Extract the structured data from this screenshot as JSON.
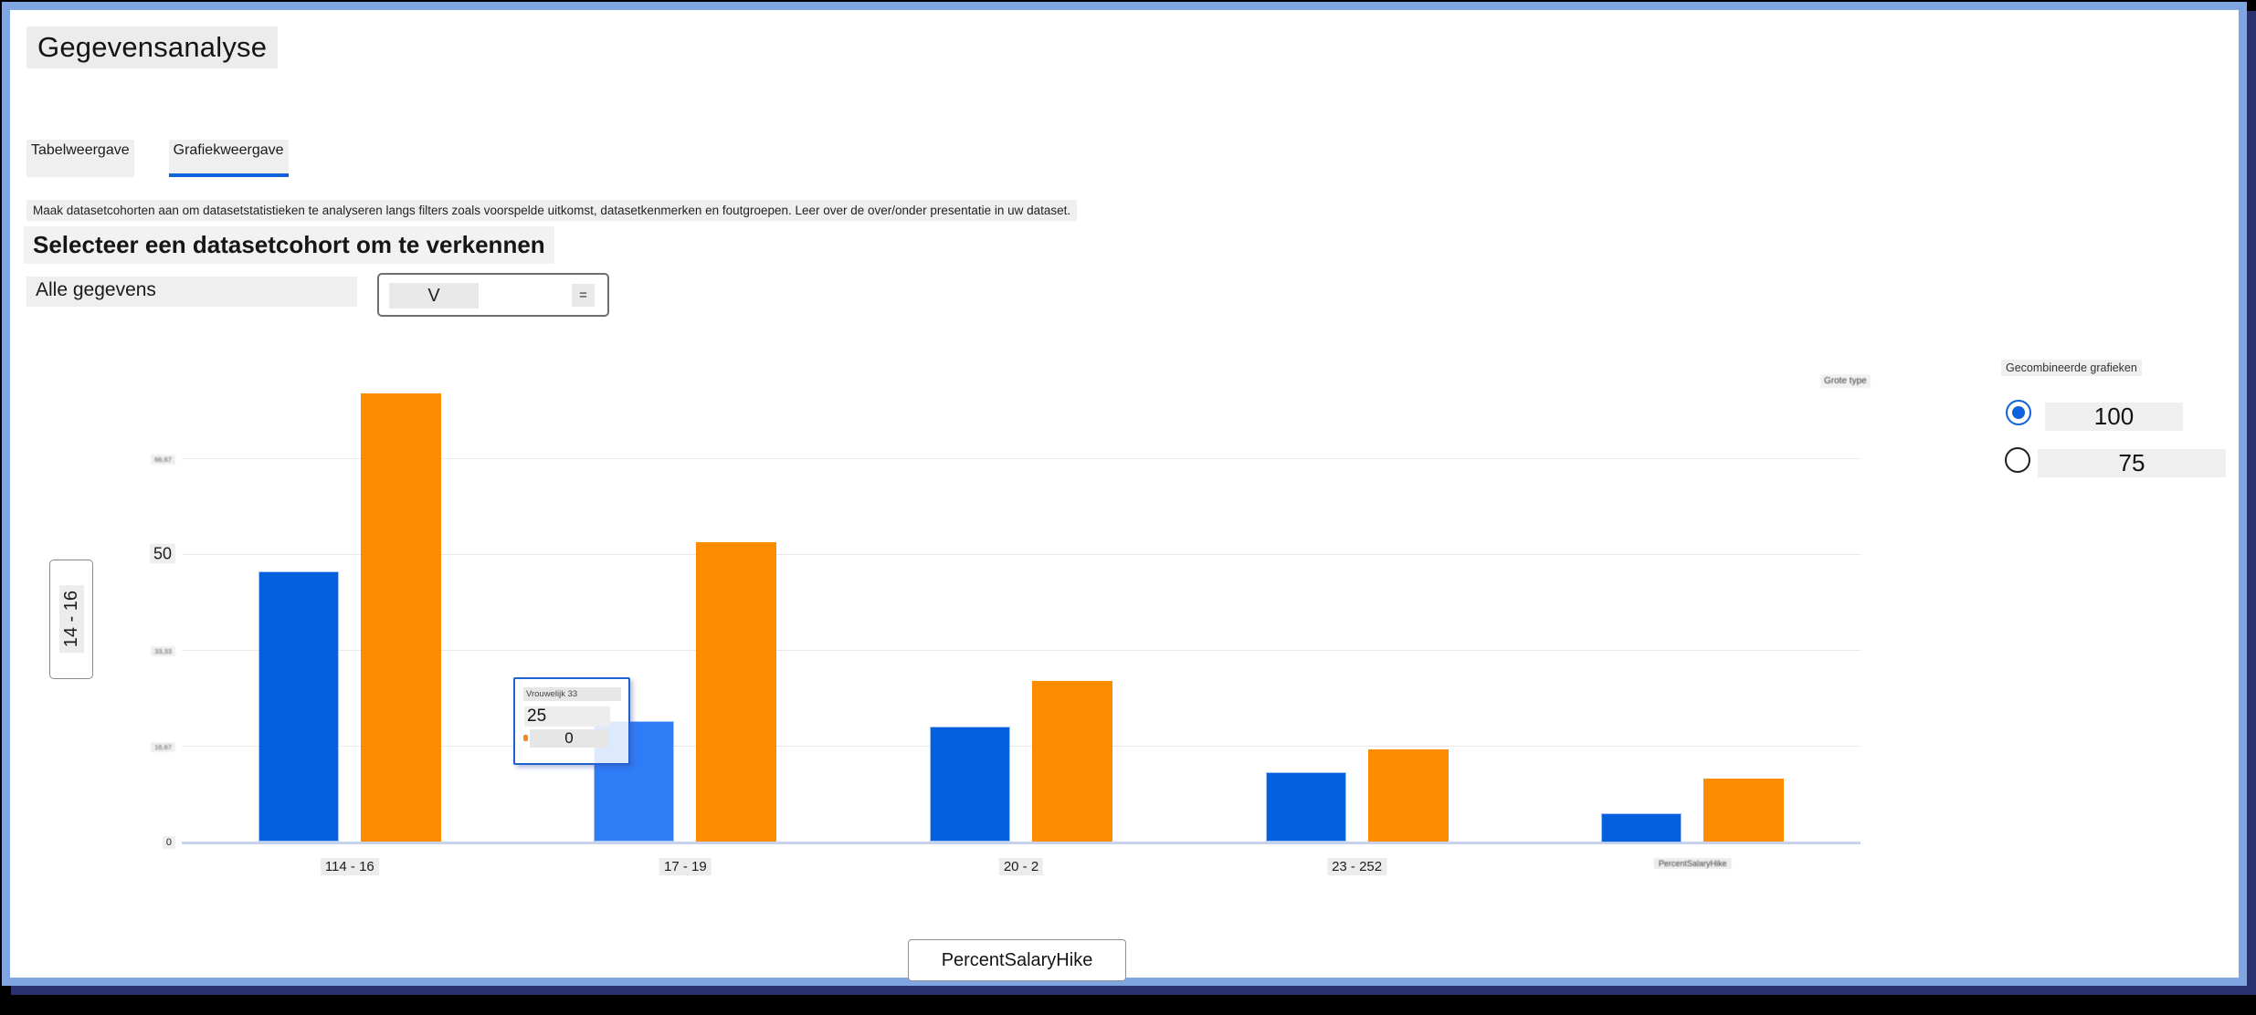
{
  "page_title": "Gegevensanalyse",
  "tabs": [
    {
      "label": "Tabelweergave",
      "active": false
    },
    {
      "label": "Grafiekweergave",
      "active": true
    }
  ],
  "description": "Maak datasetcohorten aan om datasetstatistieken te analyseren langs filters zoals voorspelde uitkomst, datasetkenmerken en foutgroepen. Leer over de over/onder presentatie in uw dataset.",
  "section_heading": "Selecteer een datasetcohort om te verkennen",
  "cohort_selector": {
    "label": "Alle gegevens",
    "dropdown_value": "V",
    "dropdown_icon": "="
  },
  "chart_type_label": "Grote type",
  "y_axis_button_label": "14 - 16",
  "x_axis_button_label": "PercentSalaryHike",
  "side_panel": {
    "title": "Gecombineerde grafieken",
    "options": [
      {
        "label": "100",
        "selected": true
      },
      {
        "label": "75",
        "selected": false
      }
    ]
  },
  "tooltip": {
    "title": "Vrouwelijk 33",
    "value_primary": "25",
    "value_secondary": "0"
  },
  "chart_data": {
    "type": "bar",
    "title": "",
    "categories": [
      "114 - 16",
      "17 - 19",
      "20 - 2",
      "23 - 252",
      "PercentSalaryHike"
    ],
    "series": [
      {
        "name": "series-blauw",
        "color": "#0560dd",
        "values": [
          47,
          21,
          20,
          12,
          5
        ]
      },
      {
        "name": "series-oranje",
        "color": "#fc8b00",
        "values": [
          78,
          52,
          28,
          16,
          11
        ]
      }
    ],
    "highlighted_bar": {
      "series": 0,
      "index": 1,
      "color": "#2f7cf7"
    },
    "xlabel": "PercentSalaryHike",
    "ylabel": "14 - 16",
    "ylim": [
      0,
      72
    ],
    "yticks": [
      {
        "value": 0,
        "label": "0"
      },
      {
        "value": 16.67,
        "label": "16,67"
      },
      {
        "value": 33.33,
        "label": "33,33"
      },
      {
        "value": 50,
        "label": "50"
      },
      {
        "value": 66.67,
        "label": "66,67"
      }
    ],
    "grid": "horizontal",
    "legend": "none"
  },
  "colors": {
    "accent_blue": "#0e62da",
    "bar_blue": "#0560dd",
    "bar_blue_hover": "#2f7cf7",
    "bar_orange": "#fc8b00",
    "window_border": "#80a6e2",
    "window_shadow": "#2a316f"
  }
}
